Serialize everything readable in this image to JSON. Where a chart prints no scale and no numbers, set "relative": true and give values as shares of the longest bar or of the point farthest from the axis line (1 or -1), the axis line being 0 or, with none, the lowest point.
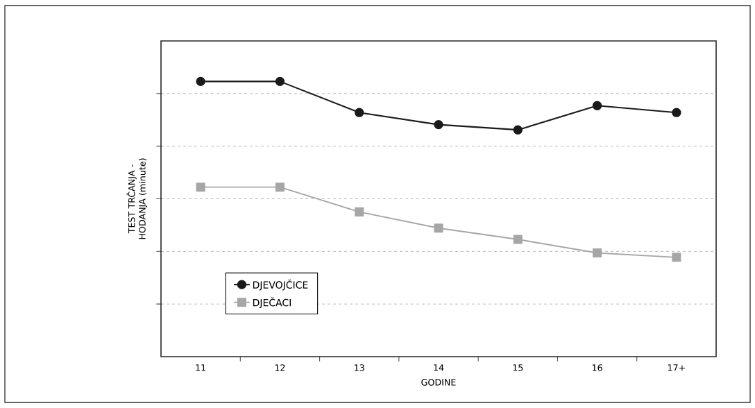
{
  "chart_data": {
    "type": "line",
    "relative": true,
    "xlabel": "GODINE",
    "ylabel": "TEST TRČANJA - HODANJA (minute)",
    "categories": [
      "11",
      "12",
      "13",
      "14",
      "15",
      "16",
      "17+"
    ],
    "series": [
      {
        "name": "DJEVOJČICE",
        "color": "#1a1a1a",
        "marker": "circle",
        "values": [
          1,
          1,
          0.887,
          0.843,
          0.824,
          0.912,
          0.887
        ]
      },
      {
        "name": "DJEČACI",
        "color": "#a6a6a6",
        "marker": "square",
        "values": [
          0.616,
          0.616,
          0.526,
          0.467,
          0.426,
          0.377,
          0.361
        ]
      }
    ],
    "grid": "y",
    "legend": "bottom left"
  }
}
